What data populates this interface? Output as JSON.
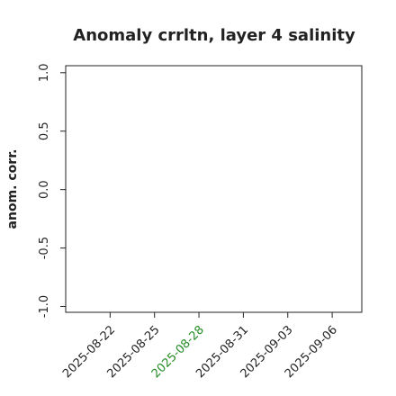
{
  "chart_data": {
    "type": "line",
    "title": "Anomaly crrltn, layer 4 salinity",
    "ylabel": "anom. corr.",
    "series": [],
    "xlim": [
      "2025-08-19",
      "2025-09-08"
    ],
    "xticks": [
      "2025-08-22",
      "2025-08-25",
      "2025-08-28",
      "2025-08-31",
      "2025-09-03",
      "2025-09-06"
    ],
    "xtick_colors": [
      "#222222",
      "#222222",
      "#228b22",
      "#222222",
      "#222222",
      "#222222"
    ],
    "ylim": [
      -1.05,
      1.06
    ],
    "yticks": [
      {
        "value": -1,
        "label": "-1.0"
      },
      {
        "value": -0.5,
        "label": "-0.5"
      },
      {
        "value": 0,
        "label": "0.0"
      },
      {
        "value": 0.5,
        "label": "0.5"
      },
      {
        "value": 1,
        "label": "1.0"
      }
    ],
    "grid": false
  }
}
